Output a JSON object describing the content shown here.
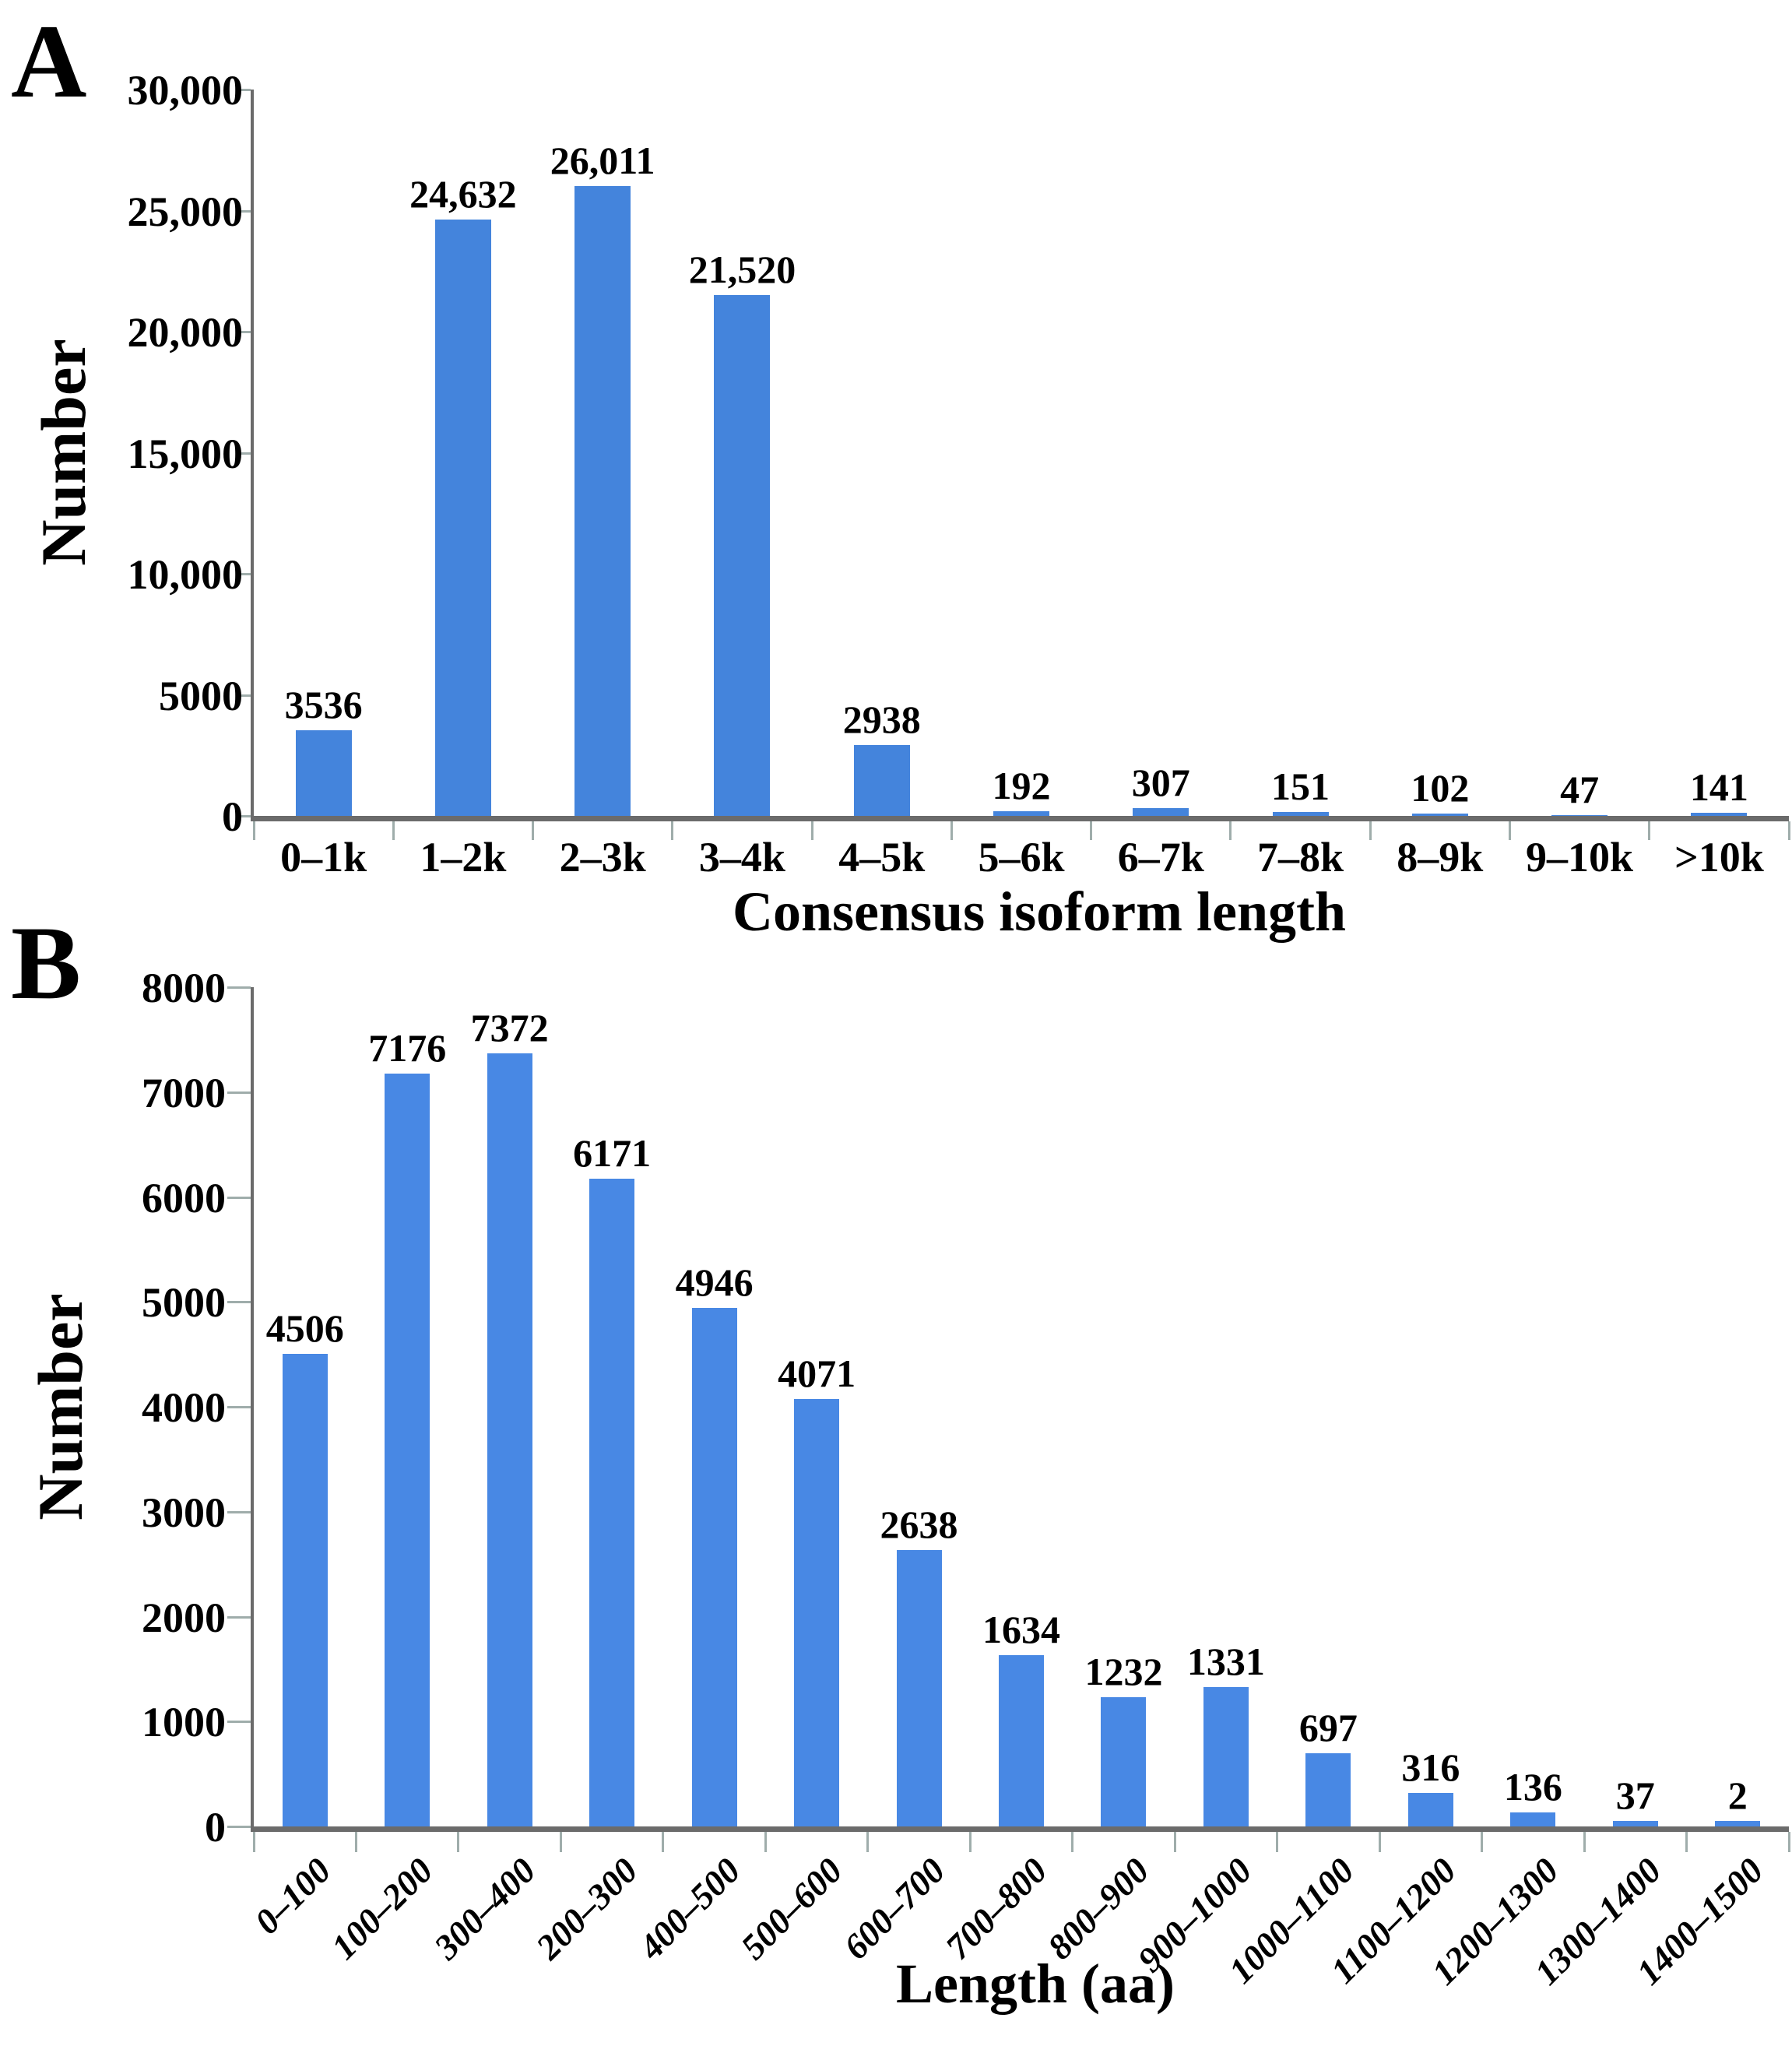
{
  "figure": {
    "background": "#ffffff",
    "axis_line_color": "#6b6b6b",
    "tick_color": "#9fadab",
    "text_color": "#000000"
  },
  "chart_data": [
    {
      "panel": "A",
      "letter": "A",
      "type": "bar",
      "ylabel": "Number",
      "xlabel": "Consensus isoform length",
      "categories": [
        "0–1k",
        "1–2k",
        "2–3k",
        "3–4k",
        "4–5k",
        "5–6k",
        "6–7k",
        "7–8k",
        "8–9k",
        "9–10k",
        ">10k"
      ],
      "values": [
        3536,
        24632,
        26011,
        21520,
        2938,
        192,
        307,
        151,
        102,
        47,
        141
      ],
      "value_labels": [
        "3536",
        "24,632",
        "26,011",
        "21,520",
        "2938",
        "192",
        "307",
        "151",
        "102",
        "47",
        "141"
      ],
      "ylim": [
        0,
        30000
      ],
      "ytick_values": [
        0,
        5000,
        10000,
        15000,
        20000,
        25000,
        30000
      ],
      "ytick_labels": [
        "0",
        "5000",
        "10,000",
        "15,000",
        "20,000",
        "25,000",
        "30,000"
      ],
      "bar_color": "#4484DC",
      "grid": false,
      "legend": false,
      "xtick_rotation": 0
    },
    {
      "panel": "B",
      "letter": "B",
      "type": "bar",
      "ylabel": "Number",
      "xlabel": "Length (aa)",
      "categories": [
        "0–100",
        "100–200",
        "300–400",
        "200–300",
        "400–500",
        "500–600",
        "600–700",
        "700–800",
        "800–900",
        "900–1000",
        "1000–1100",
        "1100–1200",
        "1200–1300",
        "1300–1400",
        "1400–1500"
      ],
      "values": [
        4506,
        7176,
        7372,
        6171,
        4946,
        4071,
        2638,
        1634,
        1232,
        1331,
        697,
        316,
        136,
        37,
        2
      ],
      "value_labels": [
        "4506",
        "7176",
        "7372",
        "6171",
        "4946",
        "4071",
        "2638",
        "1634",
        "1232",
        "1331",
        "697",
        "316",
        "136",
        "37",
        "2"
      ],
      "ylim": [
        0,
        8000
      ],
      "ytick_values": [
        0,
        1000,
        2000,
        3000,
        4000,
        5000,
        6000,
        7000,
        8000
      ],
      "ytick_labels": [
        "0",
        "1000",
        "2000",
        "3000",
        "4000",
        "5000",
        "6000",
        "7000",
        "8000"
      ],
      "bar_color": "#4888E4",
      "grid": false,
      "legend": false,
      "xtick_rotation": -45
    }
  ]
}
